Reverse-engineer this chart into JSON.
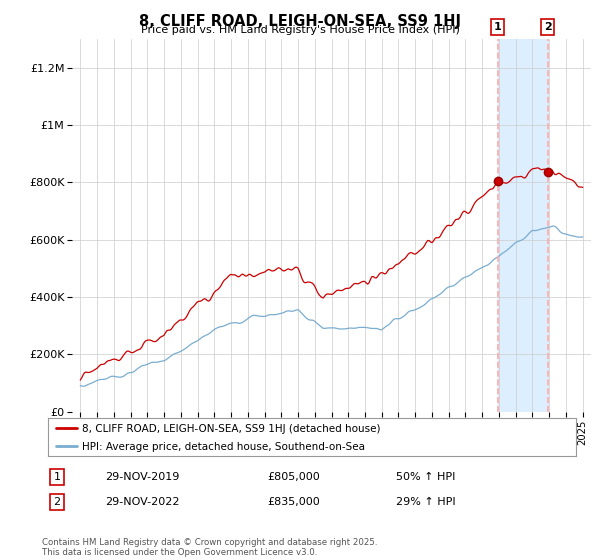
{
  "title": "8, CLIFF ROAD, LEIGH-ON-SEA, SS9 1HJ",
  "subtitle": "Price paid vs. HM Land Registry's House Price Index (HPI)",
  "legend_line1": "8, CLIFF ROAD, LEIGH-ON-SEA, SS9 1HJ (detached house)",
  "legend_line2": "HPI: Average price, detached house, Southend-on-Sea",
  "transaction1_date": "29-NOV-2019",
  "transaction1_price": "£805,000",
  "transaction1_hpi": "50% ↑ HPI",
  "transaction2_date": "29-NOV-2022",
  "transaction2_price": "£835,000",
  "transaction2_hpi": "29% ↑ HPI",
  "footer": "Contains HM Land Registry data © Crown copyright and database right 2025.\nThis data is licensed under the Open Government Licence v3.0.",
  "red_color": "#cc0000",
  "blue_color": "#7aadcf",
  "vline_color": "#ffaaaa",
  "span_color": "#ddeeff",
  "background_color": "#ffffff",
  "grid_color": "#cccccc",
  "ylim": [
    0,
    1300000
  ],
  "yticks": [
    0,
    200000,
    400000,
    600000,
    800000,
    1000000,
    1200000
  ],
  "ytick_labels": [
    "£0",
    "£200K",
    "£400K",
    "£600K",
    "£800K",
    "£1M",
    "£1.2M"
  ],
  "sale1_year": 2019.92,
  "sale2_year": 2022.92,
  "sale1_price": 805000,
  "sale2_price": 835000
}
